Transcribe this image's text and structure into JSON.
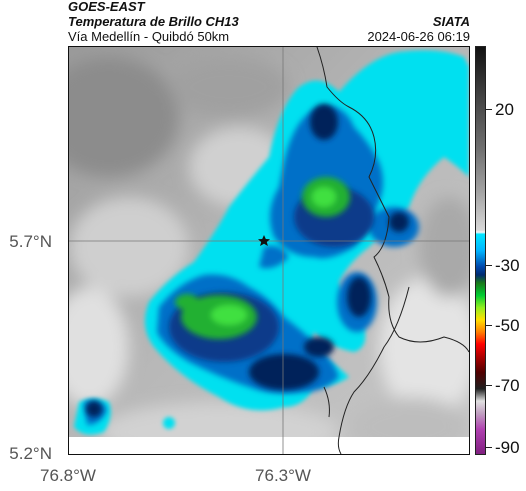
{
  "header": {
    "satellite": "GOES-EAST",
    "product": "Temperatura de Brillo CH13",
    "agency": "SIATA",
    "region": "Vía Medellín - Quibdó 50km",
    "timestamp": "2024-06-26 06:19"
  },
  "axes": {
    "latitude_labels": [
      "5.7°N",
      "5.2°N"
    ],
    "longitude_labels": [
      "76.8°W",
      "76.3°W"
    ]
  },
  "colorbar": {
    "tick_labels": [
      "20",
      "-30",
      "-50",
      "-70",
      "-90"
    ],
    "colors": [
      "#000000",
      "#808080",
      "#ffffff",
      "#00e5ff",
      "#0047ab",
      "#00cc33",
      "#ffe000",
      "#ff0000",
      "#660000",
      "#b040b0"
    ]
  },
  "map": {
    "marker_icon": "star-icon"
  }
}
